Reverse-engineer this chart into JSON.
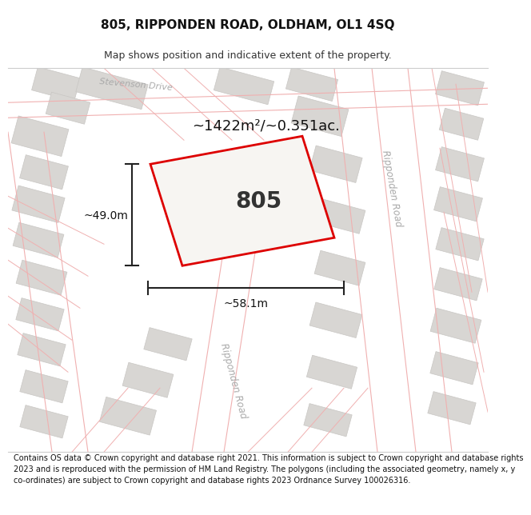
{
  "title": "805, RIPPONDEN ROAD, OLDHAM, OL1 4SQ",
  "subtitle": "Map shows position and indicative extent of the property.",
  "area_text": "~1422m²/~0.351ac.",
  "property_number": "805",
  "dim_width": "~58.1m",
  "dim_height": "~49.0m",
  "footer_line1": "Contains OS data © Crown copyright and database right 2021. This information is subject to Crown copyright and database rights",
  "footer_line2": "2023 and is reproduced with the permission of HM Land Registry. The polygons (including the associated geometry, namely x, y",
  "footer_line3": "co-ordinates) are subject to Crown copyright and database rights 2023 Ordnance Survey 100026316.",
  "map_bg": "#f7f5f2",
  "building_color": "#d8d6d3",
  "building_edge": "#c8c6c3",
  "road_color": "#ffffff",
  "road_outline_color": "#f0b0b0",
  "property_outline_color": "#dd0000",
  "property_fill": "none",
  "dim_color": "#222222",
  "road_label_color": "#aaaaaa",
  "white_bg": "#ffffff",
  "title_fontsize": 11,
  "subtitle_fontsize": 9,
  "footer_fontsize": 7
}
